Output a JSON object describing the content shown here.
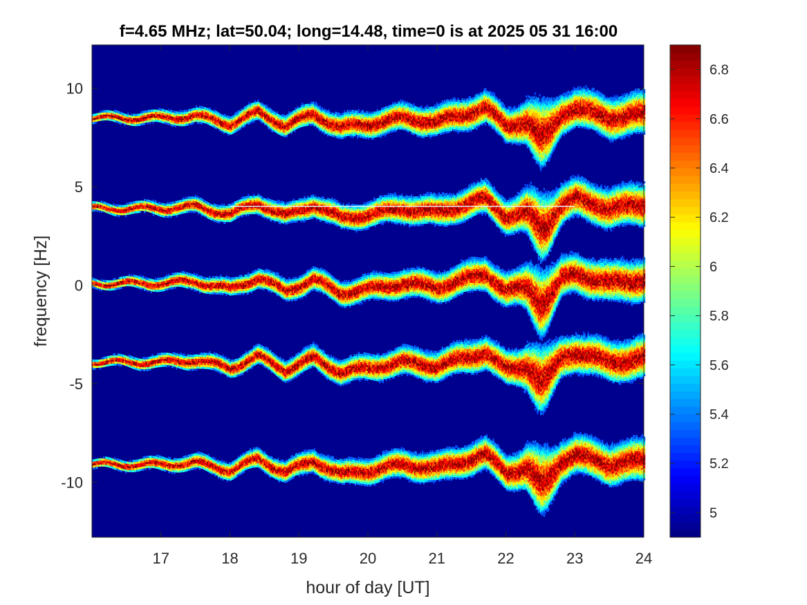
{
  "chart_data": {
    "type": "heatmap",
    "title": "f=4.65 MHz;  lat=50.04; long=14.48, time=0 is at 2025 05 31 16:00",
    "xlabel": "hour of day [UT]",
    "ylabel": "frequency [Hz]",
    "xlim": [
      16,
      24
    ],
    "ylim": [
      -12.8,
      12.2
    ],
    "xticks": [
      17,
      18,
      19,
      20,
      21,
      22,
      23,
      24
    ],
    "xtick_labels": [
      "17",
      "18",
      "19",
      "20",
      "21",
      "22",
      "23",
      "24"
    ],
    "yticks": [
      10,
      5,
      0,
      -5,
      -10
    ],
    "ytick_labels": [
      "10",
      "5",
      "0",
      "-5",
      "-10"
    ],
    "colorbar": {
      "range": [
        4.9,
        6.9
      ],
      "ticks": [
        6.8,
        6.6,
        6.4,
        6.2,
        6.0,
        5.8,
        5.6,
        5.4,
        5.2,
        5.0
      ],
      "tick_labels": [
        "6.8",
        "6.6",
        "6.4",
        "6.2",
        "6",
        "5.8",
        "5.6",
        "5.4",
        "5.2",
        "5"
      ],
      "colormap": "jet"
    },
    "background_value": 4.95,
    "series": [
      {
        "center": 8.5
      },
      {
        "center": 3.9
      },
      {
        "center": 0.1
      },
      {
        "center": -3.9
      },
      {
        "center": -9.1
      }
    ],
    "trace_shape": {
      "hours": [
        16.0,
        17.0,
        17.5,
        18.0,
        18.4,
        18.8,
        19.2,
        19.6,
        20.0,
        20.5,
        21.0,
        21.5,
        21.7,
        22.0,
        22.3,
        22.5,
        22.6,
        22.8,
        23.0,
        23.5,
        24.0
      ],
      "offset_hz": [
        0,
        0,
        0.1,
        -0.3,
        0.3,
        -0.4,
        0.2,
        -0.5,
        -0.3,
        0,
        -0.2,
        0.3,
        0.5,
        -0.4,
        -0.2,
        -1.0,
        -0.8,
        0.2,
        0.5,
        0,
        0.2
      ]
    },
    "horizontal_line": {
      "y": 4.0,
      "x": [
        18.0,
        23.0
      ]
    },
    "dip": {
      "x": 22.5
    }
  }
}
